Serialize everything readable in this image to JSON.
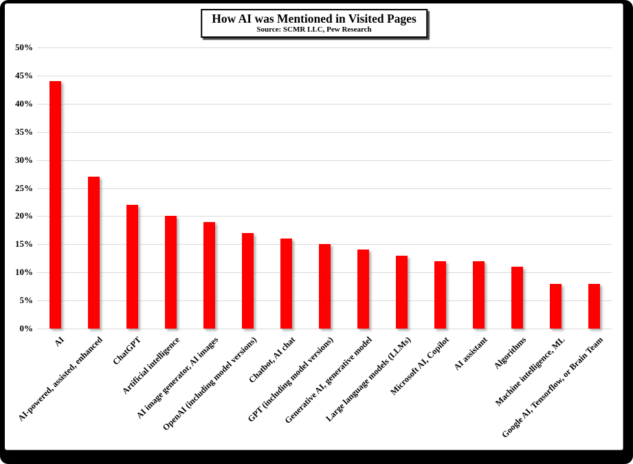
{
  "colors": {
    "bar": "#ff0000",
    "gridline": "#d9d9d9",
    "frame": "#000000",
    "background": "#ffffff"
  },
  "chart_data": {
    "type": "bar",
    "title": "How AI was Mentioned in Visited Pages",
    "subtitle": "Source: SCMR LLC, Pew Research",
    "categories": [
      "AI",
      "AI-powered, assisted, enhanced",
      "ChatGPT",
      "Artificial intelligence",
      "AI image generator, AI images",
      "OpenAI (including model versions)",
      "Chatbot, AI chat",
      "GPT (including model versions)",
      "Generative AI, generative model",
      "Large language models (LLMs)",
      "Microsoft AI, Copilot",
      "AI assistant",
      "Algorithms",
      "Machine intelligence, ML",
      "Google AI, Tensorflow, or Brain Team"
    ],
    "values": [
      44,
      27,
      22,
      20,
      19,
      17,
      16,
      15,
      14,
      13,
      12,
      12,
      11,
      8,
      8
    ],
    "xlabel": "",
    "ylabel": "",
    "ylim": [
      0,
      50
    ],
    "y_tick_step": 5,
    "y_ticks": [
      "0%",
      "5%",
      "10%",
      "15%",
      "20%",
      "25%",
      "30%",
      "35%",
      "40%",
      "45%",
      "50%"
    ],
    "grid": true,
    "legend": "none",
    "bar_label_rotation_deg": 45
  }
}
